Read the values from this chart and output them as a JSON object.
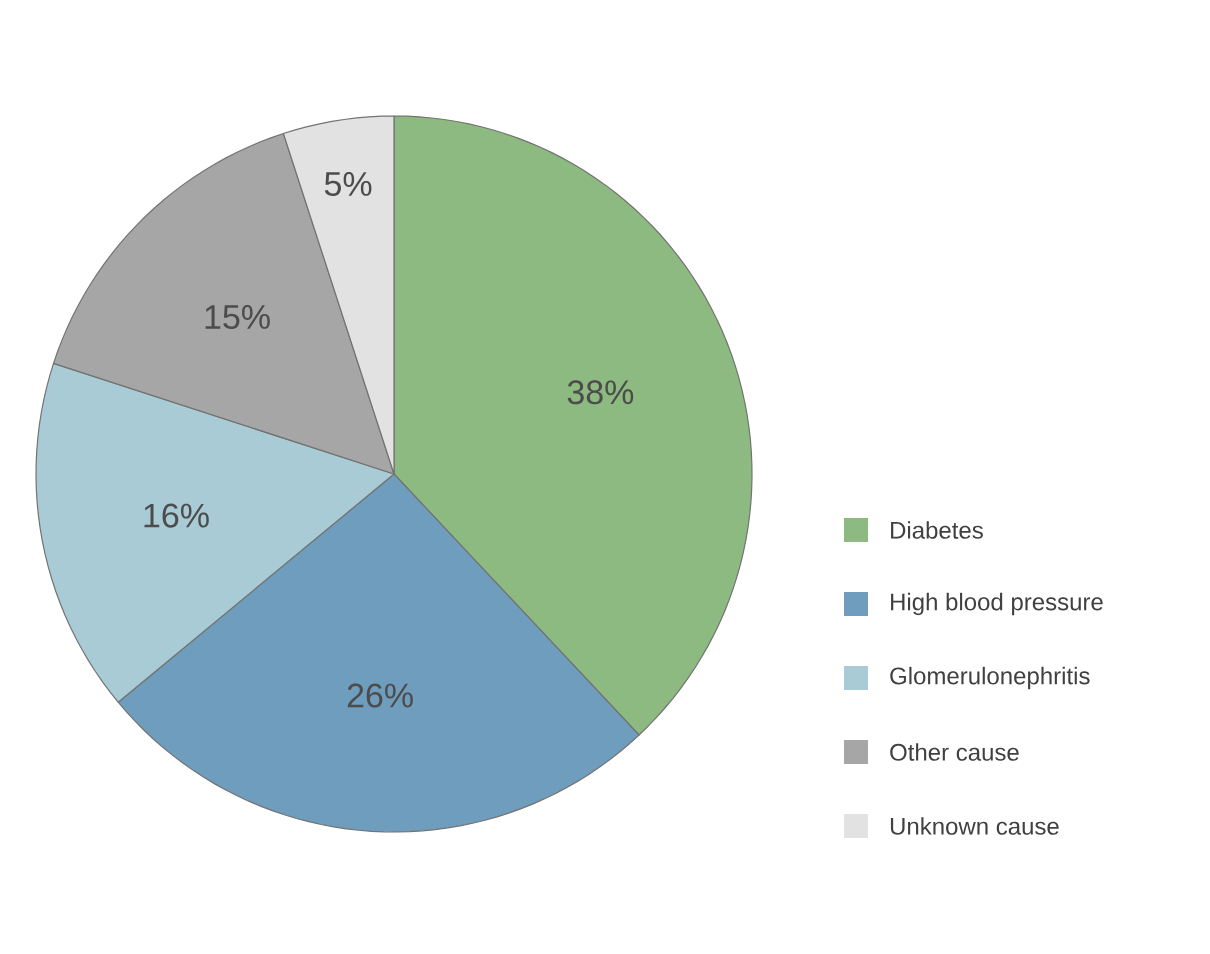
{
  "chart_data": {
    "type": "pie",
    "categories": [
      "Diabetes",
      "High blood pressure",
      "Glomerulonephritis",
      "Other cause",
      "Unknown cause"
    ],
    "values": [
      38,
      26,
      16,
      15,
      5
    ],
    "value_labels": [
      "38%",
      "26%",
      "16%",
      "15%",
      "5%"
    ],
    "colors": [
      "#8dba80",
      "#6f9dbd",
      "#a8cbd6",
      "#a6a6a6",
      "#e2e2e2"
    ],
    "legend": "right"
  }
}
